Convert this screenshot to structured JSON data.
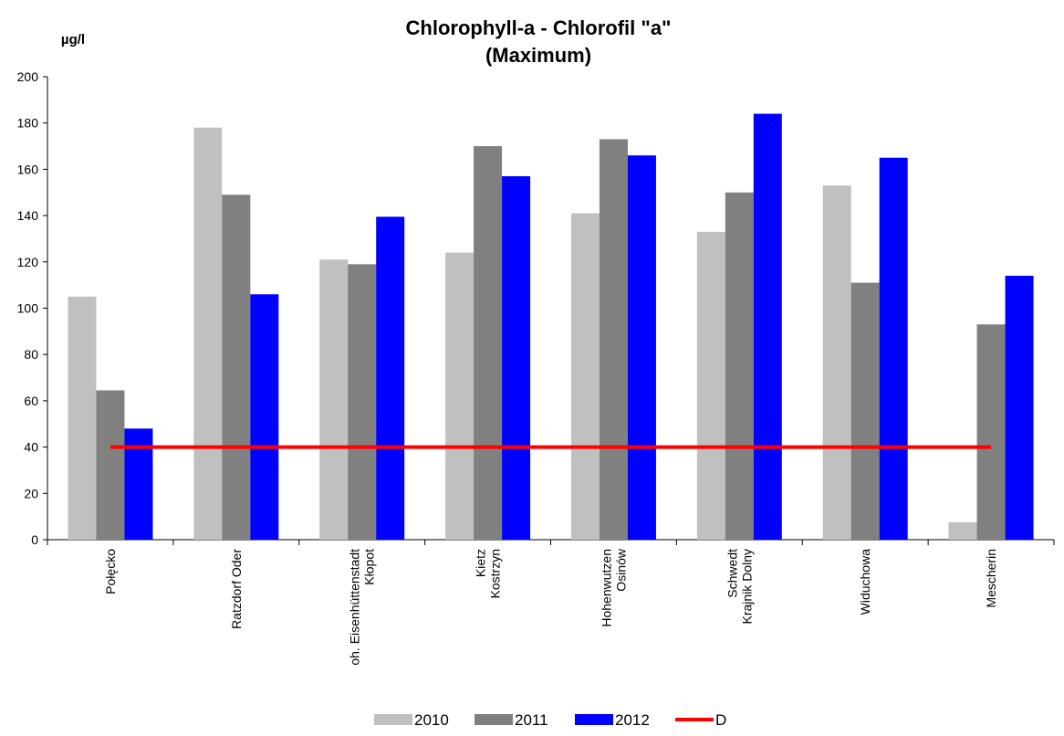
{
  "chart_data": {
    "type": "bar",
    "title": "Chlorophyll-a - Chlorofil \"a\"",
    "subtitle": "(Maximum)",
    "y_label": "µg/l",
    "categories": [
      "Połęcko",
      "Ratzdorf Oder",
      "oh. Eisenhüttenstadt\nKłopot",
      "Kietz\nKostrzyn",
      "Hohenwutzen\nOsinów",
      "Schwedt\nKrajnik Dolny",
      "Widuchowa",
      "Mescherin"
    ],
    "series": [
      {
        "name": "2010",
        "color": "#c0c0c0",
        "values": [
          105,
          178,
          121,
          124,
          141,
          133,
          153,
          7.5
        ]
      },
      {
        "name": "2011",
        "color": "#808080",
        "values": [
          64.5,
          149,
          119,
          170,
          173,
          150,
          111,
          93
        ]
      },
      {
        "name": "2012",
        "color": "#0000ff",
        "values": [
          48,
          106,
          139.5,
          157,
          166,
          184,
          165,
          114
        ]
      },
      {
        "name": "D",
        "type": "line",
        "color": "#ff0000",
        "values": [
          40,
          40,
          40,
          40,
          40,
          40,
          40,
          40
        ]
      }
    ],
    "ylim": [
      0,
      200
    ],
    "yticks": [
      0,
      20,
      40,
      60,
      80,
      100,
      120,
      140,
      160,
      180,
      200
    ],
    "legend": "bottom"
  }
}
